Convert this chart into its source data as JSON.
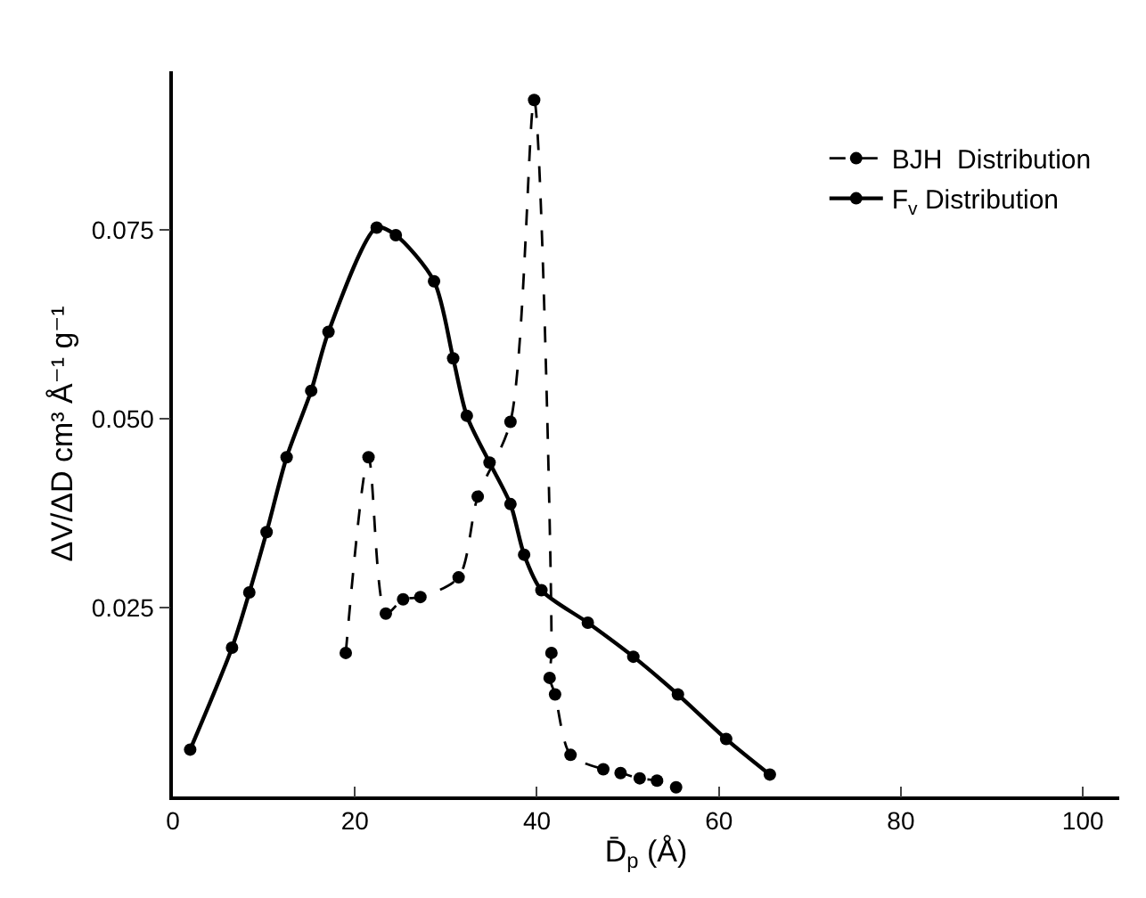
{
  "chart_data": {
    "type": "line",
    "xlabel": "D̄$_{p}$ (Å)",
    "ylabel": "ΔV/ΔD cm³ Å⁻¹ g⁻¹",
    "xlim": [
      0,
      104
    ],
    "ylim": [
      0,
      0.096
    ],
    "xticks": [
      0,
      20,
      40,
      60,
      80,
      100
    ],
    "yticks": [
      0.025,
      {
        "value": 0.05,
        "label": "0.050"
      },
      0.075
    ],
    "grid": false,
    "legend": "top right",
    "marker": "circle",
    "series": [
      {
        "name": "BJH  Distribution",
        "color": "#000000",
        "line_style": "dashed",
        "x": [
          19.0,
          21.5,
          23.4,
          25.3,
          27.2,
          31.4,
          33.5,
          37.1,
          39.7,
          41.6,
          41.4,
          42.0,
          43.7,
          47.3,
          49.2,
          51.3,
          53.2,
          55.3
        ],
        "values": [
          0.019,
          0.0449,
          0.0242,
          0.0261,
          0.0264,
          0.029,
          0.0397,
          0.0496,
          0.0922,
          0.019,
          0.0157,
          0.0135,
          0.0055,
          0.0036,
          0.0031,
          0.0024,
          0.0021,
          0.0012
        ]
      },
      {
        "name": "F$_{v}$ Distribution",
        "color": "#000000",
        "line_style": "solid",
        "x": [
          1.9,
          6.5,
          8.4,
          10.3,
          12.5,
          15.2,
          17.1,
          22.4,
          24.5,
          28.7,
          30.8,
          32.3,
          34.8,
          37.1,
          38.6,
          40.5,
          45.6,
          50.6,
          55.5,
          60.8,
          65.6
        ],
        "values": [
          0.0062,
          0.0197,
          0.027,
          0.035,
          0.0449,
          0.0537,
          0.0615,
          0.0753,
          0.0743,
          0.0682,
          0.058,
          0.0504,
          0.0442,
          0.0387,
          0.032,
          0.0273,
          0.023,
          0.0185,
          0.0135,
          0.0076,
          0.0029
        ]
      }
    ]
  }
}
